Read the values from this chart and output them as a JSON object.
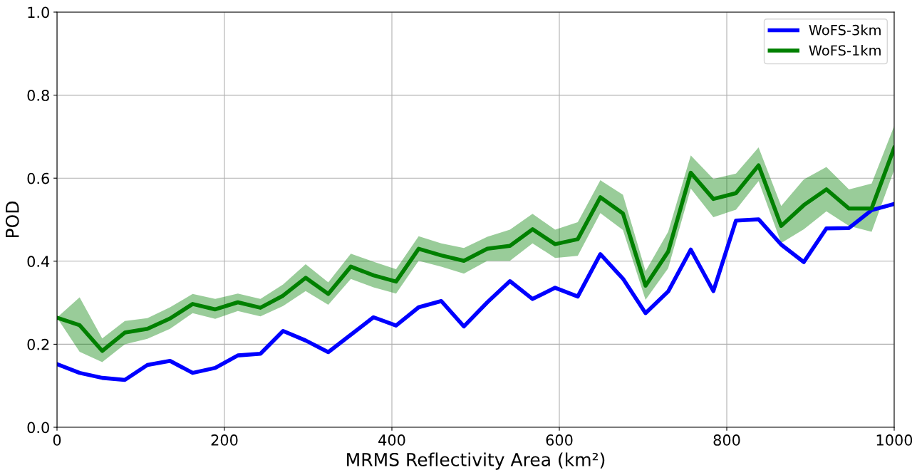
{
  "chart_data": {
    "type": "line",
    "xlabel": "MRMS Reflectivity Area (km²)",
    "ylabel": "POD",
    "x": [
      0,
      27,
      54,
      81,
      108,
      135,
      162,
      189,
      216,
      243,
      270,
      297,
      324,
      351,
      378,
      405,
      432,
      459,
      486,
      514,
      541,
      568,
      595,
      622,
      649,
      676,
      703,
      730,
      757,
      784,
      811,
      838,
      865,
      892,
      919,
      946,
      973,
      1000
    ],
    "series": [
      {
        "name": "WoFS-3km",
        "color": "#0000ff",
        "values": [
          0.152,
          0.131,
          0.119,
          0.114,
          0.15,
          0.16,
          0.131,
          0.143,
          0.173,
          0.177,
          0.232,
          0.209,
          0.181,
          0.223,
          0.265,
          0.245,
          0.289,
          0.304,
          0.243,
          0.301,
          0.352,
          0.309,
          0.336,
          0.315,
          0.417,
          0.358,
          0.275,
          0.327,
          0.428,
          0.328,
          0.498,
          0.501,
          0.44,
          0.398,
          0.479,
          0.48,
          0.523,
          0.538
        ]
      },
      {
        "name": "WoFS-1km",
        "color": "#008000",
        "values": [
          0.264,
          0.246,
          0.184,
          0.228,
          0.237,
          0.262,
          0.297,
          0.284,
          0.301,
          0.288,
          0.317,
          0.36,
          0.321,
          0.387,
          0.366,
          0.351,
          0.43,
          0.414,
          0.401,
          0.43,
          0.437,
          0.477,
          0.441,
          0.453,
          0.554,
          0.515,
          0.341,
          0.423,
          0.613,
          0.55,
          0.564,
          0.631,
          0.485,
          0.535,
          0.573,
          0.527,
          0.527,
          0.673
        ],
        "lower": [
          0.264,
          0.182,
          0.157,
          0.2,
          0.213,
          0.237,
          0.275,
          0.261,
          0.28,
          0.267,
          0.292,
          0.328,
          0.295,
          0.357,
          0.337,
          0.322,
          0.401,
          0.387,
          0.37,
          0.401,
          0.401,
          0.443,
          0.408,
          0.413,
          0.516,
          0.475,
          0.307,
          0.383,
          0.575,
          0.506,
          0.524,
          0.593,
          0.444,
          0.477,
          0.52,
          0.485,
          0.471,
          0.62
        ],
        "upper": [
          0.264,
          0.313,
          0.214,
          0.256,
          0.263,
          0.289,
          0.321,
          0.309,
          0.322,
          0.309,
          0.344,
          0.393,
          0.349,
          0.418,
          0.399,
          0.381,
          0.46,
          0.443,
          0.432,
          0.459,
          0.476,
          0.514,
          0.476,
          0.494,
          0.595,
          0.56,
          0.376,
          0.471,
          0.655,
          0.598,
          0.611,
          0.674,
          0.533,
          0.597,
          0.627,
          0.573,
          0.587,
          0.726
        ]
      }
    ],
    "xlim": [
      0,
      1000
    ],
    "xticks": [
      0,
      200,
      400,
      600,
      800,
      1000
    ],
    "ylim": [
      0,
      1.0
    ],
    "yticks": [
      {
        "value": 0,
        "label": "0.0"
      },
      {
        "value": 0.2,
        "label": "0.2"
      },
      {
        "value": 0.4,
        "label": "0.4"
      },
      {
        "value": 0.6,
        "label": "0.6"
      },
      {
        "value": 0.8,
        "label": "0.8"
      },
      {
        "value": 1.0,
        "label": "1.0"
      }
    ],
    "grid": true,
    "legend": "top right",
    "marker": "none",
    "line_style": "solid"
  }
}
